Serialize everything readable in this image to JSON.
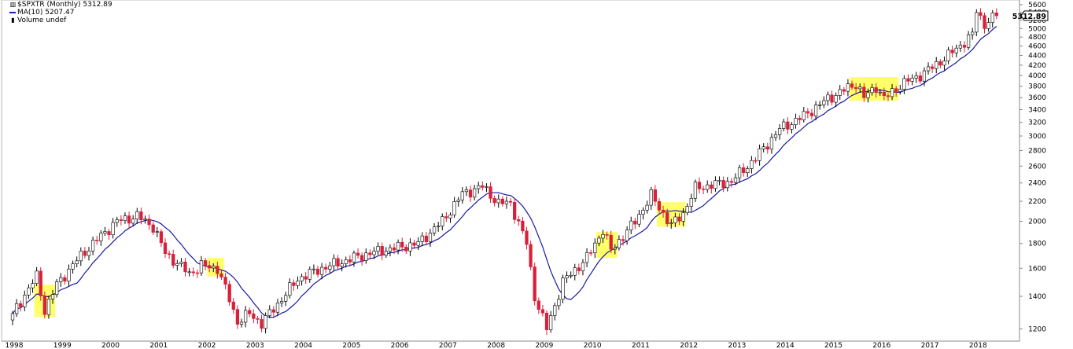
{
  "chart_data": {
    "type": "candlestick",
    "title": "$SPXTR (Monthly) 5312.89",
    "legend": {
      "title": "$SPXTR (Monthly) 5312.89",
      "ma": "MA(10) 5207.47",
      "volume": "Volume undef"
    },
    "last_value": "5312.89",
    "y_axis": {
      "scale": "log",
      "range": [
        1140,
        5620
      ],
      "ticks": [
        1200,
        1400,
        1600,
        1800,
        2000,
        2200,
        2400,
        2600,
        2800,
        3000,
        3200,
        3400,
        3600,
        3800,
        4000,
        4200,
        4400,
        4600,
        4800,
        5000,
        5200,
        5400,
        5600
      ],
      "position": "right"
    },
    "x_axis": {
      "years": [
        "1998",
        "1999",
        "2000",
        "2001",
        "2002",
        "2003",
        "2004",
        "2005",
        "2006",
        "2007",
        "2008",
        "2009",
        "2010",
        "2011",
        "2012",
        "2013",
        "2014",
        "2015",
        "2016",
        "2017",
        "2018"
      ]
    },
    "grid": false,
    "colors": {
      "up": "#ffffff",
      "down": "#d8203a",
      "outline": "#000000",
      "ma": "#1a1aa0",
      "highlight": "#ffff44"
    },
    "waypoints": [
      [
        "1998-01",
        1290
      ],
      [
        "1998-07",
        1540
      ],
      [
        "1998-09",
        1310
      ],
      [
        "1998-12",
        1480
      ],
      [
        "1999-06",
        1700
      ],
      [
        "1999-12",
        1900
      ],
      [
        "2000-03",
        2000
      ],
      [
        "2000-08",
        2050
      ],
      [
        "2000-12",
        1950
      ],
      [
        "2001-03",
        1720
      ],
      [
        "2001-09",
        1560
      ],
      [
        "2001-12",
        1620
      ],
      [
        "2002-04",
        1600
      ],
      [
        "2002-07",
        1380
      ],
      [
        "2002-09",
        1240
      ],
      [
        "2002-12",
        1290
      ],
      [
        "2003-03",
        1230
      ],
      [
        "2003-12",
        1520
      ],
      [
        "2004-06",
        1600
      ],
      [
        "2004-12",
        1660
      ],
      [
        "2005-06",
        1720
      ],
      [
        "2005-12",
        1760
      ],
      [
        "2006-06",
        1800
      ],
      [
        "2006-12",
        2000
      ],
      [
        "2007-05",
        2280
      ],
      [
        "2007-10",
        2360
      ],
      [
        "2008-02",
        2180
      ],
      [
        "2008-05",
        2180
      ],
      [
        "2008-09",
        1800
      ],
      [
        "2008-11",
        1400
      ],
      [
        "2009-02",
        1200
      ],
      [
        "2009-06",
        1500
      ],
      [
        "2009-12",
        1680
      ],
      [
        "2010-04",
        1920
      ],
      [
        "2010-06",
        1740
      ],
      [
        "2010-12",
        2000
      ],
      [
        "2011-04",
        2260
      ],
      [
        "2011-09",
        1960
      ],
      [
        "2011-12",
        2080
      ],
      [
        "2012-03",
        2340
      ],
      [
        "2012-12",
        2420
      ],
      [
        "2013-06",
        2700
      ],
      [
        "2013-12",
        3100
      ],
      [
        "2014-06",
        3300
      ],
      [
        "2014-12",
        3580
      ],
      [
        "2015-07",
        3850
      ],
      [
        "2015-09",
        3600
      ],
      [
        "2015-12",
        3800
      ],
      [
        "2016-02",
        3580
      ],
      [
        "2016-06",
        3820
      ],
      [
        "2016-12",
        4050
      ],
      [
        "2017-06",
        4400
      ],
      [
        "2017-12",
        4850
      ],
      [
        "2018-01",
        5450
      ],
      [
        "2018-03",
        5100
      ],
      [
        "2018-06",
        5312.89
      ]
    ],
    "ma_end": 5207.47,
    "highlights": [
      {
        "from": "1998-07",
        "to": "1998-11",
        "low": 1270,
        "high": 1480
      },
      {
        "from": "2002-02",
        "to": "2002-05",
        "low": 1540,
        "high": 1680
      },
      {
        "from": "2010-03",
        "to": "2010-07",
        "low": 1680,
        "high": 1900
      },
      {
        "from": "2011-06",
        "to": "2011-12",
        "low": 1950,
        "high": 2190
      },
      {
        "from": "2015-06",
        "to": "2016-05",
        "low": 3550,
        "high": 3970
      }
    ]
  }
}
